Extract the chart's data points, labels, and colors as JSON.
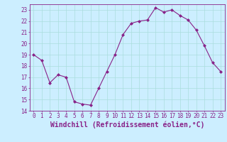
{
  "x": [
    0,
    1,
    2,
    3,
    4,
    5,
    6,
    7,
    8,
    9,
    10,
    11,
    12,
    13,
    14,
    15,
    16,
    17,
    18,
    19,
    20,
    21,
    22,
    23
  ],
  "y": [
    19,
    18.5,
    16.5,
    17.2,
    17,
    14.8,
    14.6,
    14.5,
    16.0,
    17.5,
    19.0,
    20.8,
    21.8,
    22.0,
    22.1,
    23.2,
    22.8,
    23.0,
    22.5,
    22.1,
    21.2,
    19.8,
    18.3,
    17.5
  ],
  "line_color": "#882288",
  "marker": "D",
  "marker_size": 2.0,
  "bg_color": "#cceeff",
  "grid_color": "#aadddd",
  "xlabel": "Windchill (Refroidissement éolien,°C)",
  "xlabel_fontsize": 7.0,
  "xlabel_color": "#882288",
  "xlim": [
    -0.5,
    23.5
  ],
  "ylim": [
    14,
    23.5
  ],
  "yticks": [
    14,
    15,
    16,
    17,
    18,
    19,
    20,
    21,
    22,
    23
  ],
  "xticks": [
    0,
    1,
    2,
    3,
    4,
    5,
    6,
    7,
    8,
    9,
    10,
    11,
    12,
    13,
    14,
    15,
    16,
    17,
    18,
    19,
    20,
    21,
    22,
    23
  ],
  "tick_fontsize": 5.5,
  "tick_color": "#882288",
  "spine_color": "#882288",
  "line_width": 0.8
}
